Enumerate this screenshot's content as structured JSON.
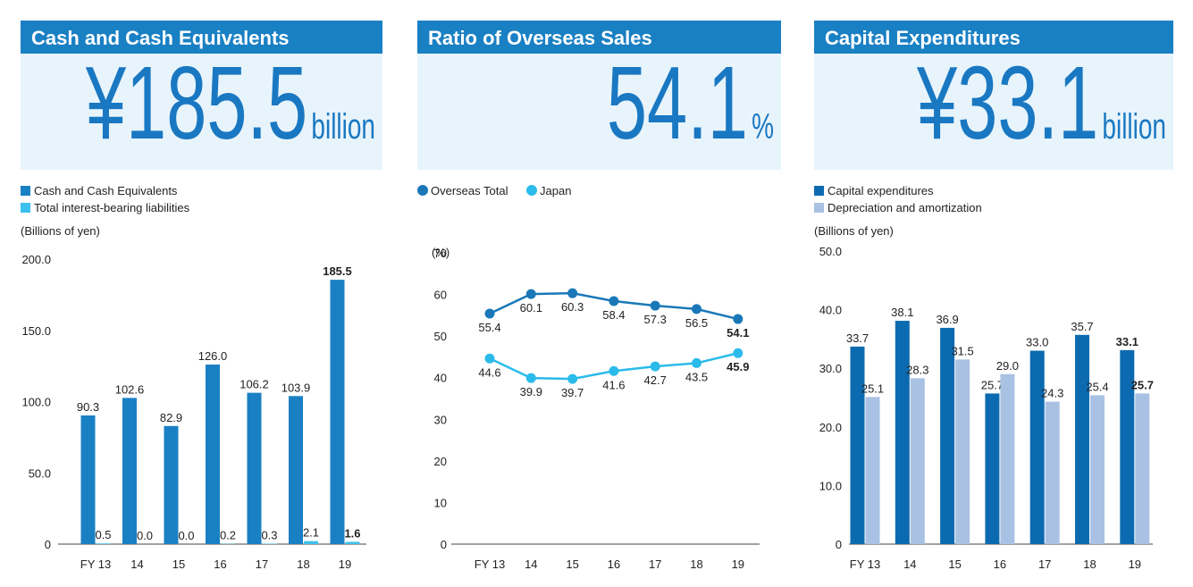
{
  "chart_data": [
    {
      "type": "bar",
      "title": "Cash and Cash Equivalents",
      "headline": {
        "value": "¥185.5",
        "unit": "billion"
      },
      "ylabel": "(Billions of yen)",
      "categories": [
        "FY 13",
        "14",
        "15",
        "16",
        "17",
        "18",
        "19"
      ],
      "series": [
        {
          "name": "Cash and Cash Equivalents",
          "color": "#1a80c4",
          "values": [
            90.3,
            102.6,
            82.9,
            126.0,
            106.2,
            103.9,
            185.5
          ],
          "value_labels": [
            "90.3",
            "102.6",
            "82.9",
            "126.0",
            "106.2",
            "103.9",
            "185.5"
          ]
        },
        {
          "name": "Total interest-bearing liabilities",
          "color": "#3dc1ee",
          "values": [
            0.5,
            0,
            0,
            0.2,
            0.3,
            2.1,
            1.6
          ],
          "value_labels": [
            "0.5",
            "0.0",
            "0.0",
            "0.2",
            "0.3",
            "2.1",
            "1.6"
          ]
        }
      ],
      "ylim": [
        0,
        200
      ],
      "yticks": [
        0,
        {
          "value": 50,
          "label": "50.0"
        },
        {
          "value": 100,
          "label": "100.0"
        },
        {
          "value": 150,
          "label": "150.0"
        },
        {
          "value": 200,
          "label": "200.0"
        }
      ]
    },
    {
      "type": "line",
      "title": "Ratio of Overseas Sales",
      "headline": {
        "value": "54.1",
        "unit": "%"
      },
      "ylabel": "(%)",
      "categories": [
        "FY 13",
        "14",
        "15",
        "16",
        "17",
        "18",
        "19"
      ],
      "series": [
        {
          "name": "Overseas Total",
          "color": "#1a78b8",
          "values": [
            55.4,
            60.1,
            60.3,
            58.4,
            57.3,
            56.5,
            54.1
          ]
        },
        {
          "name": "Japan",
          "color": "#2bbbea",
          "values": [
            44.6,
            39.9,
            39.7,
            41.6,
            42.7,
            43.5,
            45.9
          ]
        }
      ],
      "ylim": [
        0,
        70
      ],
      "yticks": [
        0,
        10,
        20,
        30,
        40,
        50,
        60,
        70
      ]
    },
    {
      "type": "bar",
      "title": "Capital Expenditures",
      "headline": {
        "value": "¥33.1",
        "unit": "billion"
      },
      "ylabel": "(Billions of yen)",
      "categories": [
        "FY 13",
        "14",
        "15",
        "16",
        "17",
        "18",
        "19"
      ],
      "series": [
        {
          "name": "Capital expenditures",
          "color": "#0c6bb0",
          "values": [
            33.7,
            38.1,
            36.9,
            25.7,
            33.0,
            35.7,
            33.1
          ],
          "value_labels": [
            "33.7",
            "38.1",
            "36.9",
            "25.7",
            "33.0",
            "35.7",
            "33.1"
          ]
        },
        {
          "name": "Depreciation and amortization",
          "color": "#a9c2e4",
          "values": [
            25.1,
            28.3,
            31.5,
            29.0,
            24.3,
            25.4,
            25.7
          ],
          "value_labels": [
            "25.1",
            "28.3",
            "31.5",
            "29.0",
            "24.3",
            "25.4",
            "25.7"
          ]
        }
      ],
      "ylim": [
        0,
        50
      ],
      "yticks": [
        0,
        {
          "value": 10,
          "label": "10.0"
        },
        {
          "value": 20,
          "label": "20.0"
        },
        {
          "value": 30,
          "label": "30.0"
        },
        {
          "value": 40,
          "label": "40.0"
        },
        {
          "value": 50,
          "label": "50.0"
        }
      ]
    }
  ]
}
